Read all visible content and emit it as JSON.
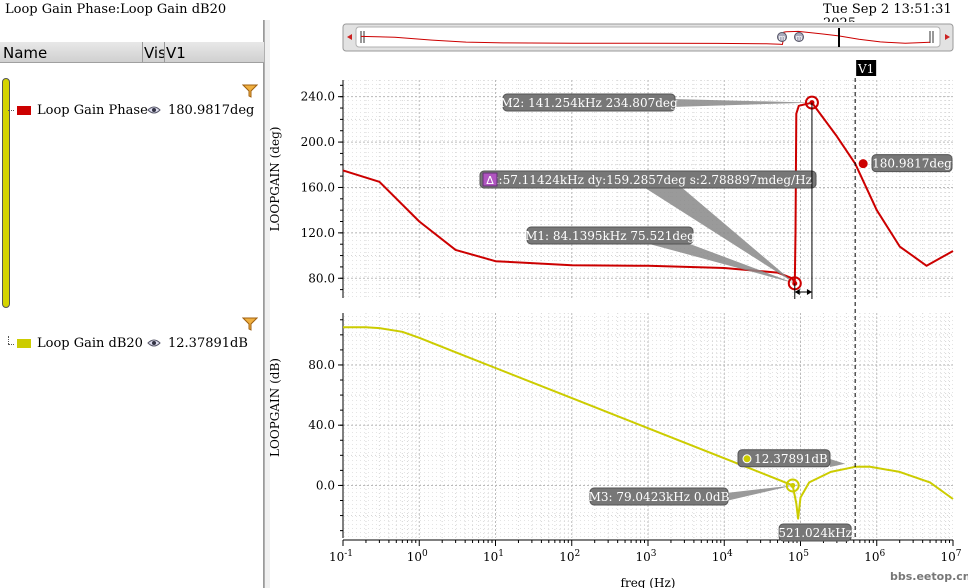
{
  "window": {
    "title": "Loop Gain Phase:Loop Gain dB20",
    "datetime": "Tue Sep 2 13:51:31",
    "datetime_line2": "2025"
  },
  "columns": {
    "name": "Name",
    "vis": "Vis",
    "v1": "V1"
  },
  "traces": [
    {
      "name": "Loop Gain Phase",
      "value": "180.9817deg",
      "color": "#cc0000"
    },
    {
      "name": "Loop Gain dB20",
      "value": "12.37891dB",
      "color": "#cccc00"
    }
  ],
  "icons": {
    "eye": "eye-icon",
    "filter": "filter-icon",
    "nav_left": "arrow-left-icon",
    "nav_right": "arrow-right-icon",
    "handle": "grip-handle-icon"
  },
  "cursor": {
    "label": "V1",
    "freq_hz": 521024,
    "freq_label": "521.024kHz"
  },
  "markers": {
    "m1": {
      "label": "M1: 84.1395kHz 75.521deg",
      "freq_hz": 84139.5,
      "y": 75.521
    },
    "m2": {
      "label": "M2: 141.254kHz 234.807deg",
      "freq_hz": 141254,
      "y": 234.807
    },
    "m3": {
      "label": "M3: 79.0423kHz 0.0dB",
      "freq_hz": 79042.3,
      "y": 0.0
    },
    "delta": {
      "label": "dx:57.11424kHz dy:159.2857deg s:2.788897mdeg/Hz",
      "symbol": "Δ"
    },
    "v1_phase": {
      "label": "180.9817deg",
      "y": 180.9817
    },
    "v1_gain": {
      "label": "12.37891dB",
      "y": 12.37891
    }
  },
  "watermark": "bbs.eetop.cn",
  "chart_data": [
    {
      "type": "line",
      "ylabel": "LOOPGAIN (deg)",
      "x_scale": "log",
      "xlim": [
        0.1,
        10000000
      ],
      "ylim": [
        60,
        250
      ],
      "yticks": [
        80,
        120,
        160,
        200,
        240
      ],
      "ytick_labels": [
        "80.0",
        "120.0",
        "160.0",
        "200.0",
        "240.0"
      ],
      "grid": true,
      "series": [
        {
          "name": "Loop Gain Phase",
          "color": "#cc0000",
          "x": [
            0.1,
            0.3,
            1,
            3,
            10,
            100,
            1000,
            10000,
            50000,
            78000,
            84139.5,
            86000,
            88000,
            95000,
            141254,
            300000,
            521024,
            1000000,
            2000000,
            4500000,
            10000000
          ],
          "y": [
            175,
            165,
            130,
            105,
            95,
            91.5,
            91,
            89,
            85,
            80,
            75.521,
            120,
            225,
            232,
            234.807,
            205,
            180.9817,
            140,
            108,
            91,
            104
          ]
        }
      ]
    },
    {
      "type": "line",
      "xlabel": "freq (Hz)",
      "ylabel": "LOOPGAIN (dB)",
      "x_scale": "log",
      "xlim": [
        0.1,
        10000000
      ],
      "ylim": [
        -35,
        115
      ],
      "xticks": [
        0.1,
        1,
        10,
        100,
        1000,
        10000,
        100000,
        1000000,
        10000000
      ],
      "xtick_labels": [
        "10-1",
        "100",
        "101",
        "102",
        "103",
        "104",
        "105",
        "106",
        "107"
      ],
      "yticks": [
        0,
        40,
        80
      ],
      "ytick_labels": [
        "0.0",
        "40.0",
        "80.0"
      ],
      "grid": true,
      "series": [
        {
          "name": "Loop Gain dB20",
          "color": "#cccc00",
          "x": [
            0.1,
            0.2,
            0.3,
            0.6,
            1,
            2,
            5,
            10,
            100,
            1000,
            10000,
            40000,
            79042.3,
            88000,
            93000,
            100000,
            130000,
            250000,
            521024,
            800000,
            2000000,
            5000000,
            10000000
          ],
          "y": [
            105,
            105,
            104.5,
            102,
            98,
            92,
            84,
            78,
            58,
            38,
            18,
            6,
            0.0,
            -12,
            -22,
            -8,
            2,
            9,
            12.37891,
            12.5,
            9,
            2,
            -9
          ]
        }
      ]
    }
  ]
}
